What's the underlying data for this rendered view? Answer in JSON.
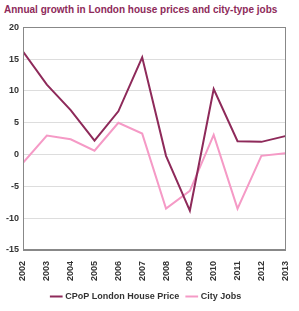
{
  "chart_data": {
    "type": "line",
    "title": "Annual growth in London house prices and city-type jobs",
    "categories": [
      "2002",
      "2003",
      "2004",
      "2005",
      "2006",
      "2007",
      "2008",
      "2009",
      "2010",
      "2011",
      "2012",
      "2013"
    ],
    "series": [
      {
        "name": "CPoP London House Price",
        "color": "#8e2a5a",
        "values": [
          16.2,
          11,
          7,
          2.2,
          6.8,
          15.3,
          -0.2,
          -8.8,
          10.3,
          2.1,
          2,
          2.9
        ]
      },
      {
        "name": "City Jobs",
        "color": "#f59ac6",
        "values": [
          -1.3,
          3,
          2.4,
          0.6,
          5,
          3.3,
          -8.5,
          -5.7,
          3.1,
          -8.5,
          -0.2,
          0.2
        ]
      }
    ],
    "ylim": [
      -15,
      20
    ],
    "yticks": [
      -15,
      -10,
      -5,
      0,
      5,
      10,
      15,
      20
    ],
    "grid": true,
    "legend": "bottom"
  }
}
